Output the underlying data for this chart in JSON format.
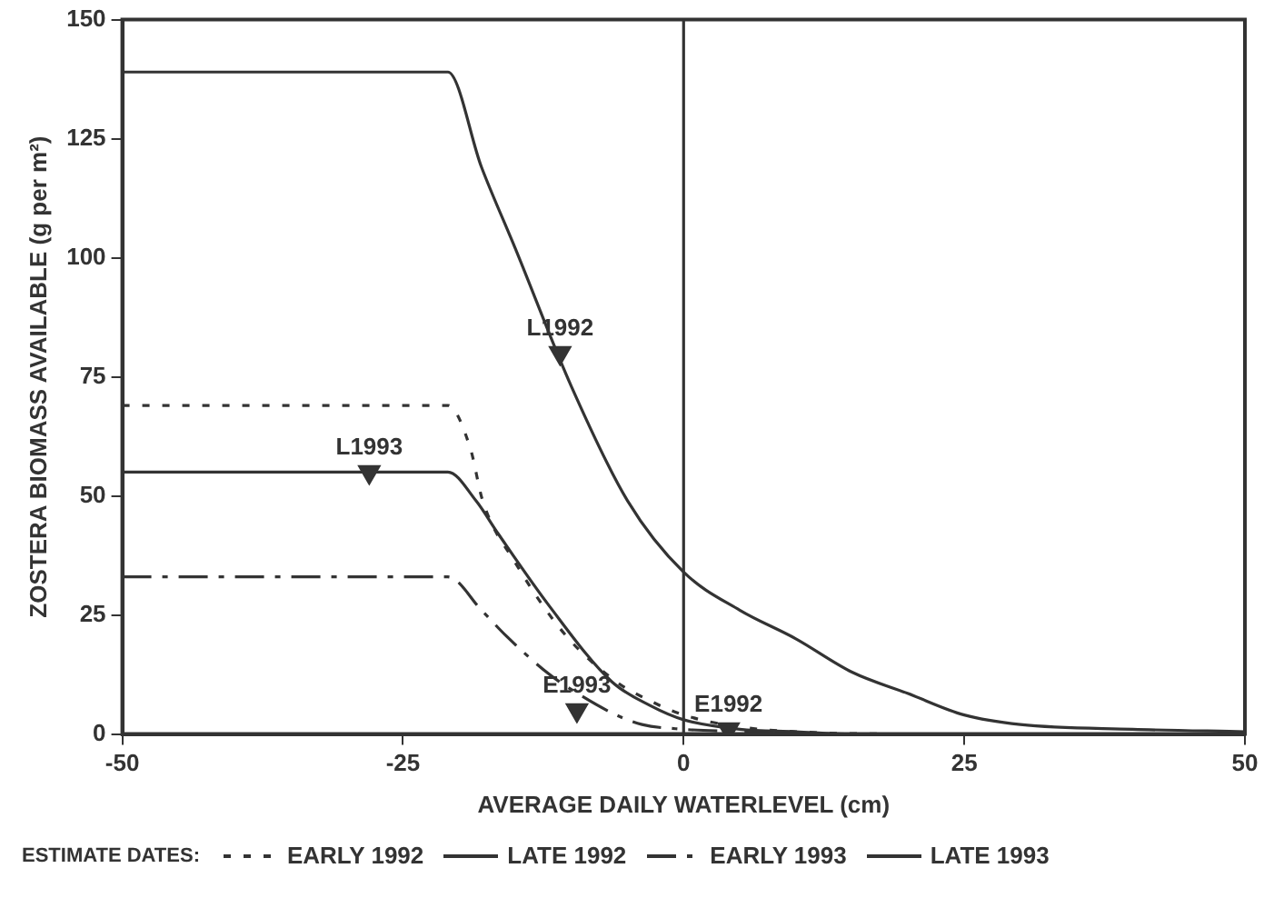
{
  "chart_data": {
    "type": "line",
    "xlabel": "AVERAGE DAILY WATERLEVEL (cm)",
    "ylabel": "ZOSTERA BIOMASS AVAILABLE (g per m²)",
    "legend_title": "ESTIMATE DATES:",
    "legend": "bottom",
    "grid": false,
    "marker": "none",
    "xlim": [
      -50,
      50
    ],
    "xticks": [
      -50,
      -25,
      0,
      25,
      50
    ],
    "ylim": [
      0,
      150
    ],
    "yticks": [
      0,
      25,
      50,
      75,
      100,
      125,
      150
    ],
    "ref_lines": [
      {
        "axis": "x",
        "value": 0,
        "color": "#333333"
      }
    ],
    "series": [
      {
        "name": "EARLY 1992",
        "color": "#333333",
        "line_style": "dotted",
        "x": [
          -50,
          -21,
          -19,
          -17.9,
          -15,
          -10.6,
          -6,
          -3,
          0,
          5,
          10,
          20,
          30,
          50
        ],
        "values": [
          69,
          69,
          60,
          49,
          36,
          21,
          11,
          7,
          4,
          1.5,
          0.5,
          0,
          0,
          0
        ]
      },
      {
        "name": "LATE 1992",
        "color": "#333333",
        "line_style": "solid",
        "x": [
          -50,
          -21,
          -18,
          -15,
          -10,
          -5,
          0,
          5,
          10,
          15,
          20,
          25,
          30,
          40,
          50
        ],
        "values": [
          139,
          139,
          119,
          102,
          73,
          49,
          34,
          26,
          20,
          13,
          8.5,
          4,
          2,
          1,
          0.5
        ]
      },
      {
        "name": "EARLY 1993",
        "color": "#333333",
        "line_style": "dashed",
        "x": [
          -50,
          -21,
          -18,
          -15.8,
          -12,
          -9.5,
          -6,
          -3.7,
          0,
          5,
          10,
          20,
          50
        ],
        "values": [
          33,
          33,
          26,
          20.6,
          12.6,
          8.6,
          4,
          2,
          1,
          0.5,
          0,
          0,
          0
        ]
      },
      {
        "name": "LATE 1993",
        "color": "#333333",
        "line_style": "solid",
        "x": [
          -50,
          -21,
          -18.5,
          -16.5,
          -12,
          -6.4,
          -3,
          0,
          5,
          10,
          15,
          25,
          50
        ],
        "values": [
          55,
          55,
          49,
          42,
          27,
          11,
          6,
          3,
          1,
          0.5,
          0,
          0,
          0
        ]
      },
      {
        "type": "scatter",
        "color": "#333333",
        "marker": "triangle",
        "x": [
          -11,
          -28,
          -9.5,
          4
        ],
        "values": [
          80,
          55,
          5,
          1
        ]
      }
    ],
    "annotations": [
      {
        "text": "L1992",
        "x": -11,
        "y": 80
      },
      {
        "text": "L1993",
        "x": -28,
        "y": 55
      },
      {
        "text": "E1993",
        "x": -9.5,
        "y": 5
      },
      {
        "text": "E1992",
        "x": 4,
        "y": 1
      }
    ]
  }
}
